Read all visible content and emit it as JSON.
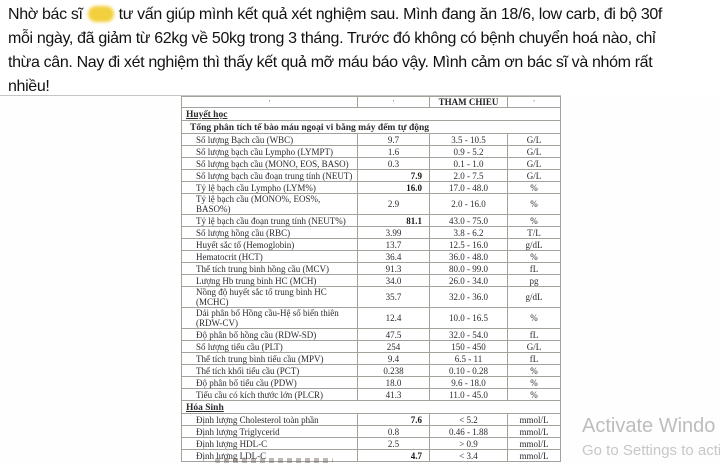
{
  "post": {
    "line1_before": "Nhờ bác sĩ",
    "censored_blob": "censored-name",
    "line1_after": "tư vấn giúp mình kết quả xét nghiệm sau. Mình đang ăn 18/6, low carb, đi bộ 30f",
    "line2": "mỗi ngày, đã giảm từ 62kg về 50kg trong 3 tháng. Trước đó không có bệnh chuyển hoá nào, chỉ",
    "line3": "thừa cân. Nay đi xét nghiệm thì thấy kết quả mỡ máu báo vậy. Mình cảm ơn bác sĩ và nhóm rất",
    "line4": "nhiều!"
  },
  "photo": {
    "table": {
      "header": {
        "reference_label": "THAM CHIEU",
        "partial_glyph": "'"
      },
      "rows": [
        {
          "type": "section",
          "name": "Huyết học"
        },
        {
          "type": "sub",
          "name": "Tổng phân tích tế bào máu ngoại vi bằng máy đếm tự động"
        },
        {
          "type": "row",
          "name": "Số lượng Bạch cầu (WBC)",
          "result": "9.7",
          "flag": false,
          "ref": "3.5 - 10.5",
          "unit": "G/L"
        },
        {
          "type": "row",
          "name": "Số lượng bạch cầu Lympho (LYMPT)",
          "result": "1.6",
          "flag": false,
          "ref": "0.9 - 5.2",
          "unit": "G/L"
        },
        {
          "type": "row",
          "name": "Số lượng bạch cầu (MONO, EOS, BASO)",
          "result": "0.3",
          "flag": false,
          "ref": "0.1 - 1.0",
          "unit": "G/L"
        },
        {
          "type": "row",
          "name": "Số lượng bạch cầu đoạn trung tính (NEUT)",
          "result": "7.9",
          "flag": true,
          "ref": "2.0 - 7.5",
          "unit": "G/L"
        },
        {
          "type": "row",
          "name": "Tỷ lệ bạch cầu Lympho (LYM%)",
          "result": "16.0",
          "flag": true,
          "ref": "17.0 - 48.0",
          "unit": "%"
        },
        {
          "type": "row",
          "name": "Tỷ lệ bạch cầu (MONO%, EOS%, BASO%)",
          "result": "2.9",
          "flag": false,
          "ref": "2.0 - 16.0",
          "unit": "%"
        },
        {
          "type": "row",
          "name": "Tỷ lệ bạch cầu đoạn trung tính (NEUT%)",
          "result": "81.1",
          "flag": true,
          "ref": "43.0 - 75.0",
          "unit": "%"
        },
        {
          "type": "row",
          "name": "Số lượng hồng cầu (RBC)",
          "result": "3.99",
          "flag": false,
          "ref": "3.8 - 6.2",
          "unit": "T/L"
        },
        {
          "type": "row",
          "name": "Huyết sắc tố (Hemoglobin)",
          "result": "13.7",
          "flag": false,
          "ref": "12.5 - 16.0",
          "unit": "g/dL"
        },
        {
          "type": "row",
          "name": "Hematocrit (HCT)",
          "result": "36.4",
          "flag": false,
          "ref": "36.0 - 48.0",
          "unit": "%"
        },
        {
          "type": "row",
          "name": "Thể tích trung bình hồng cầu (MCV)",
          "result": "91.3",
          "flag": false,
          "ref": "80.0 - 99.0",
          "unit": "fL"
        },
        {
          "type": "row",
          "name": "Lượng Hb trung bình HC (MCH)",
          "result": "34.0",
          "flag": false,
          "ref": "26.0 - 34.0",
          "unit": "pg"
        },
        {
          "type": "row",
          "name": "Nồng độ huyết sắc tố trung bình HC\n(MCHC)",
          "result": "35.7",
          "flag": false,
          "ref": "32.0 - 36.0",
          "unit": "g/dL"
        },
        {
          "type": "row",
          "name": "Dải phân bố Hồng cầu-Hệ số biến thiên\n(RDW-CV)",
          "result": "12.4",
          "flag": false,
          "ref": "10.0 - 16.5",
          "unit": "%"
        },
        {
          "type": "row",
          "name": "Độ phân bố hồng cầu (RDW-SD)",
          "result": "47.5",
          "flag": false,
          "ref": "32.0 - 54.0",
          "unit": "fL"
        },
        {
          "type": "row",
          "name": "Số lượng tiểu cầu (PLT)",
          "result": "254",
          "flag": false,
          "ref": "150 - 450",
          "unit": "G/L"
        },
        {
          "type": "row",
          "name": "Thể tích trung bình tiểu cầu (MPV)",
          "result": "9.4",
          "flag": false,
          "ref": "6.5 - 11",
          "unit": "fL"
        },
        {
          "type": "row",
          "name": "Thể tích khối tiểu cầu (PCT)",
          "result": "0.238",
          "flag": false,
          "ref": "0.10 - 0.28",
          "unit": "%"
        },
        {
          "type": "row",
          "name": "Độ phân bố tiểu cầu (PDW)",
          "result": "18.0",
          "flag": false,
          "ref": "9.6 - 18.0",
          "unit": "%"
        },
        {
          "type": "row",
          "name": "Tiểu cầu có kích thước lớn (PLCR)",
          "result": "41.3",
          "flag": false,
          "ref": "11.0 - 45.0",
          "unit": "%"
        },
        {
          "type": "section",
          "name": "Hóa Sinh"
        },
        {
          "type": "row",
          "name": "Định lượng Cholesterol toàn phần",
          "result": "7.6",
          "flag": true,
          "ref": "< 5.2",
          "unit": "mmol/L"
        },
        {
          "type": "row",
          "name": "Định lượng Triglycerid",
          "result": "0.8",
          "flag": false,
          "ref": "0.46 - 1.88",
          "unit": "mmol/L"
        },
        {
          "type": "row",
          "name": "Định lượng HDL-C",
          "result": "2.5",
          "flag": false,
          "ref": "> 0.9",
          "unit": "mmol/L"
        },
        {
          "type": "row",
          "name": "Định lượng LDL-C",
          "result": "4.7",
          "flag": true,
          "ref": "< 3.4",
          "unit": "mmol/L"
        }
      ]
    }
  },
  "watermark": {
    "line1": "Activate Windo",
    "line2": "Go to Settings to acti"
  }
}
